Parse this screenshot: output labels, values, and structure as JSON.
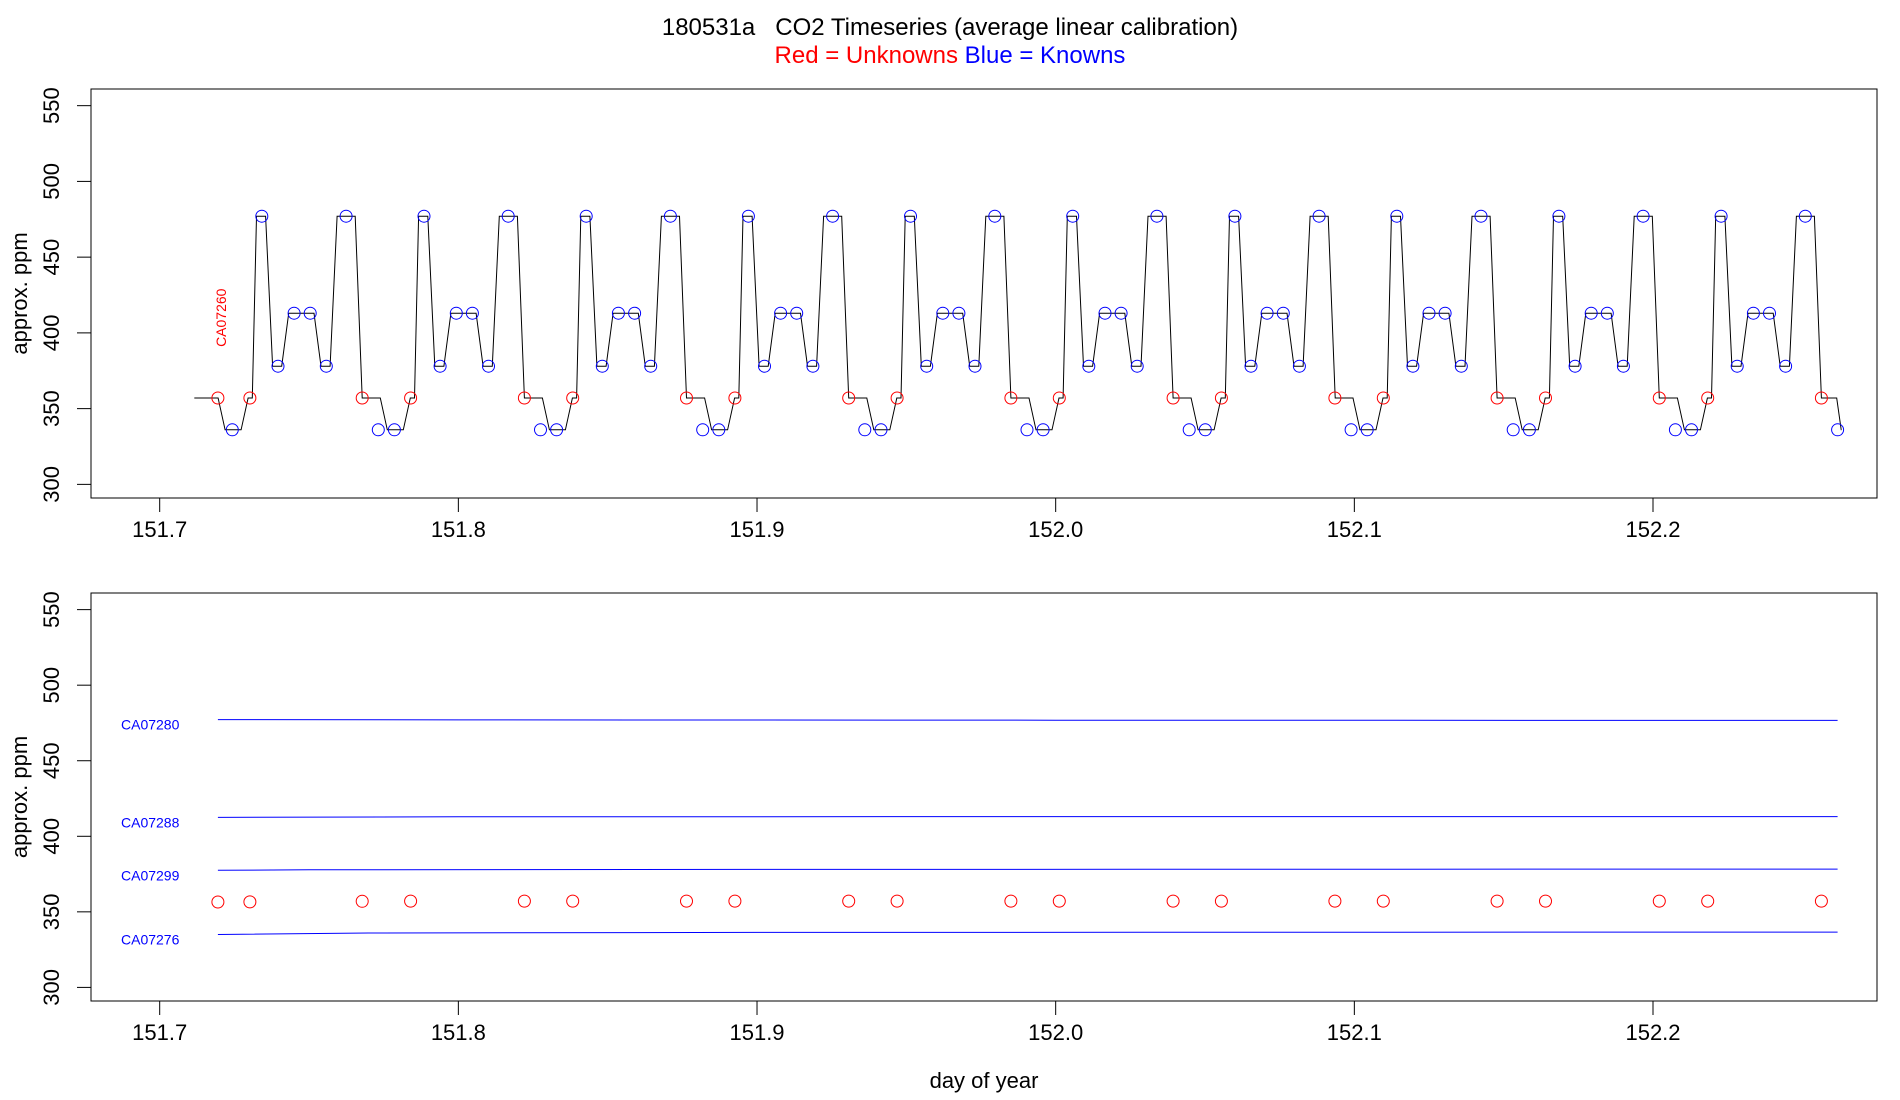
{
  "title": "180531a   CO2 Timeseries (average linear calibration)",
  "subtitle": {
    "unknowns": "Red = Unknowns",
    "knowns": "Blue = Knowns"
  },
  "colors": {
    "unknown": "#ff0000",
    "known": "#0000ff",
    "trace": "#000000",
    "flat_line": "#0000ff"
  },
  "chart_data": [
    {
      "type": "line",
      "panel": "top",
      "ylabel": "approx. ppm",
      "xlabel": "",
      "xlim": [
        151.677,
        152.275
      ],
      "ylim": [
        291,
        561
      ],
      "xticks": [
        "151.7",
        "151.8",
        "151.9",
        "152.0",
        "152.1",
        "152.2"
      ],
      "yticks": [
        "300",
        "350",
        "400",
        "450",
        "500",
        "550"
      ],
      "annotation": {
        "text": "CA07260",
        "x": 151.7205,
        "y": 410,
        "color": "#ff0000"
      },
      "trace_levels": {
        "ref": 357,
        "low": 336,
        "mid": 378,
        "std": 413,
        "high": 477
      },
      "cycles": [
        151.7171,
        151.7714,
        151.8257,
        151.88,
        151.9343,
        151.9886,
        152.0429,
        152.0971,
        152.1514,
        152.2057
      ],
      "tail_start": 152.26,
      "series": [
        {
          "name": "Unknowns",
          "color": "#ff0000",
          "x": [
            151.7195,
            151.7302,
            151.7678,
            151.784,
            151.8221,
            151.8383,
            151.8764,
            151.8926,
            151.9307,
            151.9469,
            151.985,
            152.0012,
            152.0393,
            152.0555,
            152.0935,
            152.1097,
            152.1478,
            152.164,
            152.2021,
            152.2183,
            152.2564
          ],
          "y": [
            357,
            357,
            357,
            357,
            357,
            357,
            357,
            357,
            357,
            357,
            357,
            357,
            357,
            357,
            357,
            357,
            357,
            357,
            357,
            357,
            357
          ]
        },
        {
          "name": "Knowns",
          "color": "#0000ff",
          "x": [
            151.7243,
            151.7342,
            151.7396,
            151.745,
            151.7504,
            151.7558,
            151.7624,
            151.7732,
            151.7786,
            151.7885,
            151.7939,
            151.7993,
            151.8047,
            151.8101,
            151.8167,
            151.8275,
            151.8329,
            151.8428,
            151.8482,
            151.8536,
            151.859,
            151.8644,
            151.871,
            151.8818,
            151.8872,
            151.8971,
            151.9025,
            151.9079,
            151.9133,
            151.9187,
            151.9253,
            151.9361,
            151.9415,
            151.9514,
            151.9568,
            151.9622,
            151.9676,
            151.973,
            151.9796,
            151.9904,
            151.9958,
            152.0057,
            152.0111,
            152.0165,
            152.0219,
            152.0273,
            152.0339,
            152.0447,
            152.0501,
            152.06,
            152.0654,
            152.0708,
            152.0762,
            152.0816,
            152.0882,
            152.0989,
            152.1043,
            152.1142,
            152.1196,
            152.125,
            152.1304,
            152.1358,
            152.1424,
            152.1532,
            152.1586,
            152.1685,
            152.1739,
            152.1793,
            152.1847,
            152.1901,
            152.1967,
            152.2075,
            152.2129,
            152.2228,
            152.2282,
            152.2336,
            152.239,
            152.2444,
            152.251,
            152.2618
          ],
          "y": [
            336,
            477,
            378,
            413,
            413,
            378,
            477,
            336,
            336,
            477,
            378,
            413,
            413,
            378,
            477,
            336,
            336,
            477,
            378,
            413,
            413,
            378,
            477,
            336,
            336,
            477,
            378,
            413,
            413,
            378,
            477,
            336,
            336,
            477,
            378,
            413,
            413,
            378,
            477,
            336,
            336,
            477,
            378,
            413,
            413,
            378,
            477,
            336,
            336,
            477,
            378,
            413,
            413,
            378,
            477,
            336,
            336,
            477,
            378,
            413,
            413,
            378,
            477,
            336,
            336,
            477,
            378,
            413,
            413,
            378,
            477,
            336,
            336,
            477,
            378,
            413,
            413,
            378,
            477,
            336
          ]
        }
      ]
    },
    {
      "type": "line",
      "panel": "bottom",
      "ylabel": "approx. ppm",
      "xlabel": "day of year",
      "xlim": [
        151.677,
        152.275
      ],
      "ylim": [
        291,
        561
      ],
      "xticks": [
        "151.7",
        "151.8",
        "151.9",
        "152.0",
        "152.1",
        "152.2"
      ],
      "yticks": [
        "300",
        "350",
        "400",
        "450",
        "500",
        "550"
      ],
      "series": [
        {
          "name": "CA07280",
          "color": "#0000ff",
          "x": [
            151.7195,
            151.8,
            152.0,
            152.2618
          ],
          "y": [
            477.2,
            477.0,
            476.8,
            476.7
          ]
        },
        {
          "name": "CA07288",
          "color": "#0000ff",
          "x": [
            151.7195,
            151.8,
            152.0,
            152.2618
          ],
          "y": [
            412.5,
            412.9,
            413.0,
            413.0
          ]
        },
        {
          "name": "CA07299",
          "color": "#0000ff",
          "x": [
            151.7195,
            151.75,
            151.9,
            152.2618
          ],
          "y": [
            377.5,
            377.8,
            378.1,
            378.3
          ]
        },
        {
          "name": "CA07276",
          "color": "#0000ff",
          "x": [
            151.7195,
            151.77,
            151.9,
            152.2618
          ],
          "y": [
            335.0,
            336.0,
            336.4,
            336.6
          ]
        },
        {
          "name": "Unknowns",
          "color": "#ff0000",
          "x": [
            151.7195,
            151.7302,
            151.7678,
            151.784,
            151.8221,
            151.8383,
            151.8764,
            151.8926,
            151.9307,
            151.9469,
            151.985,
            152.0012,
            152.0393,
            152.0555,
            152.0935,
            152.1097,
            152.1478,
            152.164,
            152.2021,
            152.2183,
            152.2564
          ],
          "y": [
            356.5,
            356.6,
            357.0,
            357.1,
            357.1,
            357.1,
            357.1,
            357.1,
            357.1,
            357.1,
            357.1,
            357.1,
            357.1,
            357.1,
            357.1,
            357.1,
            357.1,
            357.1,
            357.1,
            357.1,
            357.1
          ]
        }
      ]
    }
  ]
}
